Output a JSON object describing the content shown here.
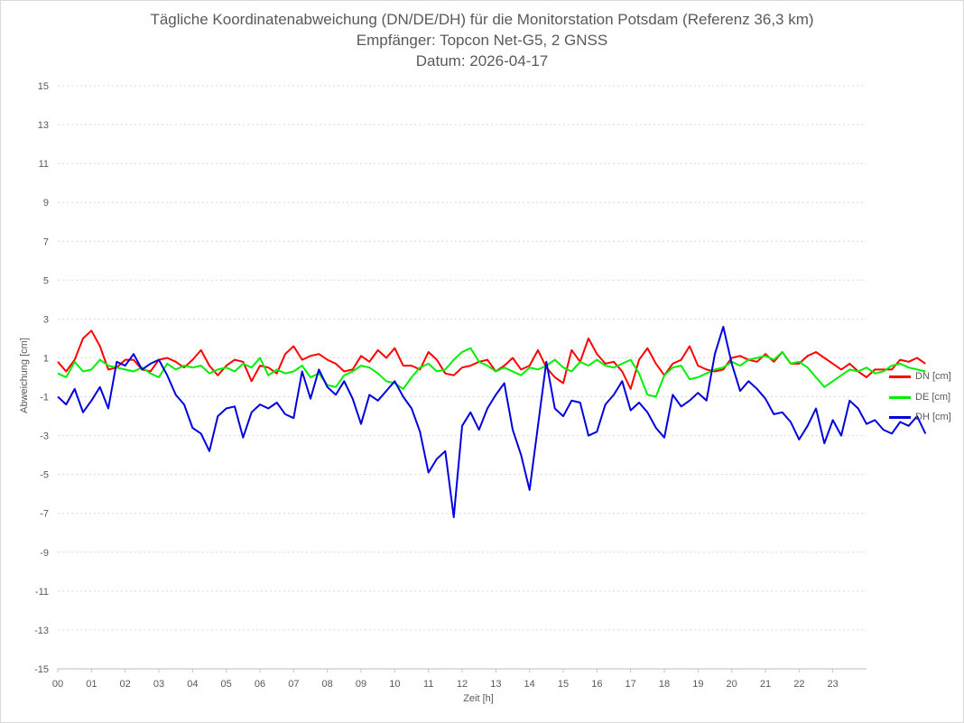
{
  "chart_data": {
    "type": "line",
    "title": "Tägliche Koordinatenabweichung (DN/DE/DH) für die Monitorstation Potsdam (Referenz 36,3 km)",
    "subtitle": "Empfänger: Topcon Net-G5, 2 GNSS",
    "date_line": "Datum: 2026-04-17",
    "xlabel": "Zeit [h]",
    "ylabel": "Abweichung [cm]",
    "ylim": [
      -15,
      15
    ],
    "yticks": [
      "15",
      "13",
      "11",
      "9",
      "7",
      "5",
      "3",
      "1",
      "-1",
      "-3",
      "-5",
      "-7",
      "-9",
      "-11",
      "-13",
      "-15"
    ],
    "xlim": [
      0,
      24
    ],
    "xticks": [
      "00",
      "01",
      "02",
      "03",
      "04",
      "05",
      "06",
      "07",
      "08",
      "09",
      "10",
      "11",
      "12",
      "13",
      "14",
      "15",
      "16",
      "17",
      "18",
      "19",
      "20",
      "21",
      "22",
      "23"
    ],
    "grid": true,
    "legend": "right",
    "sample_step_h": 0.25,
    "series": [
      {
        "name": "DN [cm]",
        "color": "#ff0000",
        "values": [
          0.8,
          0.3,
          0.9,
          2.0,
          2.4,
          1.6,
          0.4,
          0.5,
          0.9,
          0.9,
          0.4,
          0.3,
          0.9,
          1.0,
          0.8,
          0.5,
          0.9,
          1.4,
          0.6,
          0.1,
          0.6,
          0.9,
          0.8,
          -0.2,
          0.6,
          0.5,
          0.2,
          1.2,
          1.6,
          0.9,
          1.1,
          1.2,
          0.9,
          0.7,
          0.3,
          0.4,
          1.1,
          0.8,
          1.4,
          1.0,
          1.5,
          0.6,
          0.6,
          0.4,
          1.3,
          0.9,
          0.2,
          0.1,
          0.5,
          0.6,
          0.8,
          0.9,
          0.3,
          0.6,
          1.0,
          0.4,
          0.6,
          1.4,
          0.5,
          0.0,
          -0.3,
          1.4,
          0.8,
          2.0,
          1.2,
          0.7,
          0.8,
          0.3,
          -0.6,
          0.9,
          1.5,
          0.7,
          0.1,
          0.7,
          0.9,
          1.6,
          0.6,
          0.4,
          0.3,
          0.4,
          1.0,
          1.1,
          0.9,
          0.8,
          1.2,
          0.8,
          1.3,
          0.7,
          0.7,
          1.1,
          1.3,
          1.0,
          0.7,
          0.4,
          0.7,
          0.3,
          0.0,
          0.4,
          0.4,
          0.4,
          0.9,
          0.8,
          1.0,
          0.7
        ]
      },
      {
        "name": "DE [cm]",
        "color": "#00ee00",
        "values": [
          0.2,
          0.0,
          0.8,
          0.3,
          0.4,
          0.9,
          0.6,
          0.5,
          0.4,
          0.3,
          0.5,
          0.2,
          0.0,
          0.7,
          0.4,
          0.6,
          0.5,
          0.6,
          0.2,
          0.4,
          0.5,
          0.3,
          0.7,
          0.5,
          1.0,
          0.1,
          0.4,
          0.2,
          0.3,
          0.6,
          0.0,
          0.2,
          -0.4,
          -0.5,
          0.1,
          0.3,
          0.6,
          0.5,
          0.2,
          -0.2,
          -0.3,
          -0.6,
          0.0,
          0.5,
          0.7,
          0.3,
          0.4,
          0.9,
          1.3,
          1.5,
          0.8,
          0.6,
          0.3,
          0.5,
          0.3,
          0.1,
          0.5,
          0.4,
          0.6,
          0.9,
          0.5,
          0.3,
          0.8,
          0.6,
          0.9,
          0.6,
          0.5,
          0.7,
          0.9,
          0.2,
          -0.9,
          -1.0,
          0.1,
          0.5,
          0.6,
          -0.1,
          0.0,
          0.2,
          0.4,
          0.5,
          0.8,
          0.6,
          0.9,
          1.0,
          1.1,
          0.9,
          1.3,
          0.7,
          0.8,
          0.5,
          0.0,
          -0.5,
          -0.2,
          0.1,
          0.4,
          0.3,
          0.5,
          0.2,
          0.3,
          0.6,
          0.7,
          0.5,
          0.4,
          0.3
        ]
      },
      {
        "name": "DH [cm]",
        "color": "#0000dd",
        "values": [
          -1.0,
          -1.4,
          -0.6,
          -1.8,
          -1.2,
          -0.5,
          -1.6,
          0.8,
          0.6,
          1.2,
          0.4,
          0.7,
          0.9,
          0.1,
          -0.9,
          -1.4,
          -2.6,
          -2.9,
          -3.8,
          -2.0,
          -1.6,
          -1.5,
          -3.1,
          -1.8,
          -1.4,
          -1.6,
          -1.3,
          -1.9,
          -2.1,
          0.3,
          -1.1,
          0.4,
          -0.5,
          -0.9,
          -0.2,
          -1.1,
          -2.4,
          -0.9,
          -1.2,
          -0.7,
          -0.2,
          -1.0,
          -1.6,
          -2.8,
          -4.9,
          -4.2,
          -3.8,
          -7.2,
          -2.5,
          -1.8,
          -2.7,
          -1.6,
          -0.9,
          -0.3,
          -2.7,
          -4.0,
          -5.8,
          -2.5,
          0.8,
          -1.6,
          -2.0,
          -1.2,
          -1.3,
          -3.0,
          -2.8,
          -1.4,
          -0.9,
          -0.2,
          -1.7,
          -1.3,
          -1.8,
          -2.6,
          -3.1,
          -0.9,
          -1.5,
          -1.2,
          -0.8,
          -1.2,
          1.2,
          2.6,
          0.7,
          -0.7,
          -0.2,
          -0.6,
          -1.1,
          -1.9,
          -1.8,
          -2.3,
          -3.2,
          -2.5,
          -1.6,
          -3.4,
          -2.2,
          -3.0,
          -1.2,
          -1.6,
          -2.4,
          -2.2,
          -2.7,
          -2.9,
          -2.3,
          -2.5,
          -2.0,
          -2.9
        ]
      }
    ]
  }
}
